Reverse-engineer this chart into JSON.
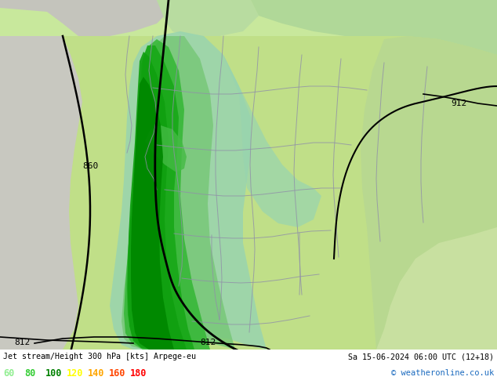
{
  "title_left": "Jet stream/Height 300 hPa [kts] Arpege-eu",
  "title_right": "Sa 15-06-2024 06:00 UTC (12+18)",
  "copyright": "© weatheronline.co.uk",
  "legend_values": [
    "60",
    "80",
    "100",
    "120",
    "140",
    "160",
    "180"
  ],
  "legend_colors": [
    "#90ee90",
    "#32cd32",
    "#008000",
    "#ffff00",
    "#ffa500",
    "#ff4500",
    "#ff0000"
  ],
  "fig_width": 6.34,
  "fig_height": 4.9,
  "dpi": 100,
  "map_bg": "#b8e68c",
  "left_ocean_color": "#d8d8d0",
  "top_ocean_color": "#c8c8c0",
  "jet_light_teal": "#90d4b8",
  "jet_light_green": "#a8d890",
  "jet_mid_green": "#50c050",
  "jet_bright_green": "#20a820",
  "jet_dark_green": "#008800",
  "label_860": "860",
  "label_912": "912",
  "label_812a": "812",
  "label_812b": "812"
}
